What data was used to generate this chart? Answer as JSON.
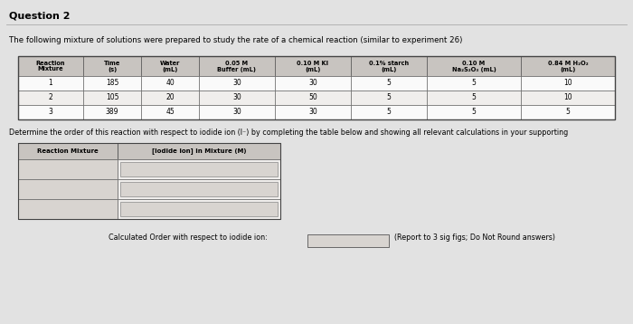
{
  "title": "Question 2",
  "subtitle": "The following mixture of solutions were prepared to study the rate of a chemical reaction (similar to experiment 26)",
  "main_table_headers": [
    "Reaction\nMixture",
    "Time\n(s)",
    "Water\n(mL)",
    "0.05 M\nBuffer (mL)",
    "0.10 M KI\n(mL)",
    "0.1% starch\n(mL)",
    "0.10 M\nNa₂S₂O₃ (mL)",
    "0.84 M H₂O₂\n(mL)"
  ],
  "main_table_data": [
    [
      "1",
      "185",
      "40",
      "30",
      "30",
      "5",
      "5",
      "10"
    ],
    [
      "2",
      "105",
      "20",
      "30",
      "50",
      "5",
      "5",
      "10"
    ],
    [
      "3",
      "389",
      "45",
      "30",
      "30",
      "5",
      "5",
      "5"
    ]
  ],
  "second_table_header1": "Reaction Mixture",
  "second_table_header2": "[Iodide ion] in Mixture (M)",
  "determine_text": "Determine the order of this reaction with respect to iodide ion (I⁻) by completing the table below and showing all relevant calculations in your supporting",
  "calc_order_text": "Calculated Order with respect to iodide ion:",
  "report_text": "(Report to 3 sig figs; Do Not Round answers)",
  "bg_color": "#e2e2e2",
  "header_bg": "#c8c4c0",
  "row_bg": "#f0eeec",
  "input_bg": "#d8d4d0",
  "white": "#fafafa",
  "title_line_color": "#aaaaaa"
}
